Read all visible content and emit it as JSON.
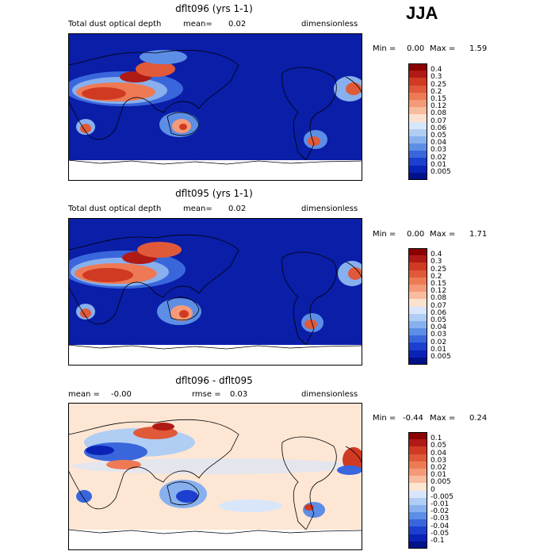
{
  "season": "JJA",
  "panels": [
    {
      "id": "p1",
      "title": "dflt096 (yrs 1-1)",
      "left_text": "Total dust optical depth",
      "mean_label": "mean=",
      "mean_value": "0.02",
      "units": "dimensionless",
      "min_label": "Min =",
      "min_value": "0.00",
      "max_label": "Max =",
      "max_value": "1.59",
      "levels": [
        "0.4",
        "0.3",
        "0.25",
        "0.2",
        "0.15",
        "0.12",
        "0.08",
        "0.07",
        "0.06",
        "0.05",
        "0.04",
        "0.03",
        "0.02",
        "0.01",
        "0.005"
      ],
      "colors": [
        "#8b0000",
        "#b01a14",
        "#d03a22",
        "#e05a3a",
        "#ee7a55",
        "#f49a78",
        "#f8bc9e",
        "#fbe2d0",
        "#d8e6fa",
        "#b0cdf4",
        "#88b0ee",
        "#5d8ee6",
        "#3a66dc",
        "#1c3fcf",
        "#0a22b5",
        "#00118a"
      ]
    },
    {
      "id": "p2",
      "title": "dflt095 (yrs 1-1)",
      "left_text": "Total dust optical depth",
      "mean_label": "mean=",
      "mean_value": "0.02",
      "units": "dimensionless",
      "min_label": "Min =",
      "min_value": "0.00",
      "max_label": "Max =",
      "max_value": "1.71",
      "levels": [
        "0.4",
        "0.3",
        "0.25",
        "0.2",
        "0.15",
        "0.12",
        "0.08",
        "0.07",
        "0.06",
        "0.05",
        "0.04",
        "0.03",
        "0.02",
        "0.01",
        "0.005"
      ],
      "colors": [
        "#8b0000",
        "#b01a14",
        "#d03a22",
        "#e05a3a",
        "#ee7a55",
        "#f49a78",
        "#f8bc9e",
        "#fbe2d0",
        "#d8e6fa",
        "#b0cdf4",
        "#88b0ee",
        "#5d8ee6",
        "#3a66dc",
        "#1c3fcf",
        "#0a22b5",
        "#00118a"
      ]
    },
    {
      "id": "p3",
      "title": "dflt096 - dflt095",
      "left_text": "mean =",
      "left_value": "-0.00",
      "rmse_label": "rmse =",
      "rmse_value": "0.03",
      "units": "dimensionless",
      "min_label": "Min =",
      "min_value": "-0.44",
      "max_label": "Max =",
      "max_value": "0.24",
      "levels": [
        "0.1",
        "0.05",
        "0.04",
        "0.03",
        "0.02",
        "0.01",
        "0.005",
        "0",
        "-0.005",
        "-0.01",
        "-0.02",
        "-0.03",
        "-0.04",
        "-0.05",
        "-0.1"
      ],
      "colors": [
        "#8b0000",
        "#b01a14",
        "#d03a22",
        "#e05a3a",
        "#ee7a55",
        "#f49a78",
        "#f8bc9e",
        "#fde6d4",
        "#d8e6fa",
        "#b0cdf4",
        "#88b0ee",
        "#5d8ee6",
        "#3a66dc",
        "#1c3fcf",
        "#0a22b5",
        "#00118a"
      ]
    }
  ],
  "fill_colors": {
    "ocean_low": "#0a1ea8",
    "diff_bg": "#fde6d4",
    "antarctica": "#ffffff"
  }
}
